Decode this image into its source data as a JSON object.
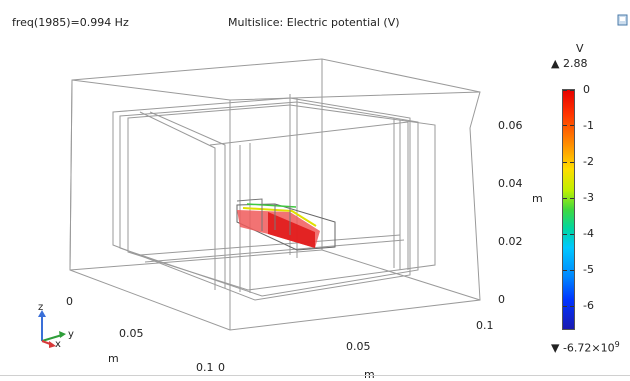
{
  "plot": {
    "frequency_label": "freq(1985)=0.994 Hz",
    "title": "Multislice: Electric potential (V)"
  },
  "colorbar": {
    "unit": "V",
    "max_label": "▲ 2.88",
    "min_label": "▼ -6.72×10",
    "min_exponent": "9",
    "ticks": [
      "0",
      "-1",
      "-2",
      "-3",
      "-4",
      "-5",
      "-6"
    ],
    "colors": [
      "#e60000",
      "#ff8800",
      "#ffdd00",
      "#3fd83f",
      "#00c8ff",
      "#0033ff",
      "#1a1ab0"
    ]
  },
  "axes": {
    "z_ticks": [
      "0.06",
      "0.04",
      "0.02",
      "0"
    ],
    "z_unit": "m",
    "x_ticks": [
      "0",
      "0.05",
      "0.1"
    ],
    "x_unit": "m",
    "y_ticks": [
      "0",
      "0.05",
      "0.1"
    ],
    "y_unit": "m"
  },
  "triad": {
    "z": "z",
    "y": "y",
    "x": "x"
  },
  "icons": {
    "corner": "export-image-icon",
    "triad": "axis-orientation-icon"
  }
}
